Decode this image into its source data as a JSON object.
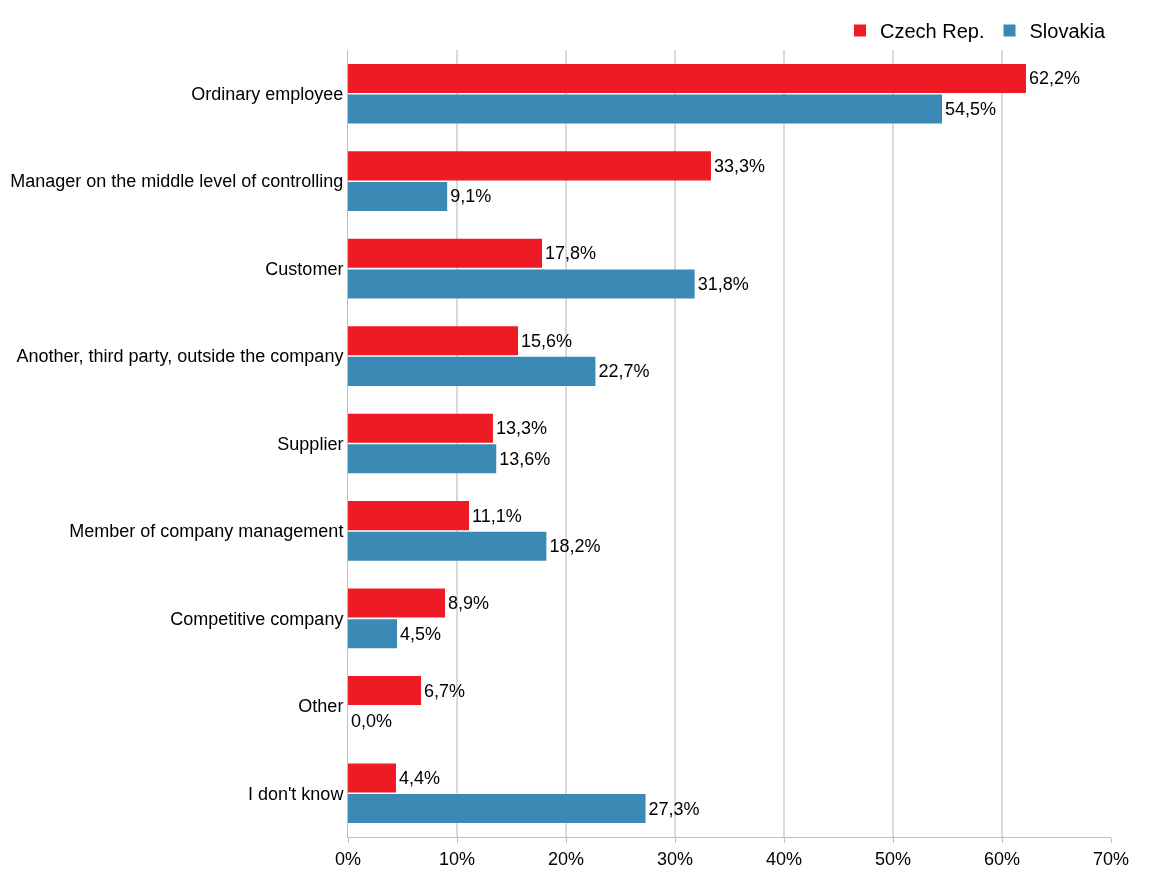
{
  "chart_data": {
    "type": "bar",
    "orientation": "horizontal",
    "categories": [
      "Ordinary employee",
      "Manager on the middle level of controlling",
      "Customer",
      "Another, third party, outside the company",
      "Supplier",
      "Member of company management",
      "Competitive company",
      "Other",
      "I don't know"
    ],
    "series": [
      {
        "name": "Czech Rep.",
        "color": "#ed1c24",
        "values": [
          62.2,
          33.3,
          17.8,
          15.6,
          13.3,
          11.1,
          8.9,
          6.7,
          4.4
        ],
        "value_labels": [
          "62,2%",
          "33,3%",
          "17,8%",
          "15,6%",
          "13,3%",
          "11,1%",
          "8,9%",
          "6,7%",
          "4,4%"
        ]
      },
      {
        "name": "Slovakia",
        "color": "#3a8ab5",
        "values": [
          54.5,
          9.1,
          31.8,
          22.7,
          13.6,
          18.2,
          4.5,
          0.0,
          27.3
        ],
        "value_labels": [
          "54,5%",
          "9,1%",
          "31,8%",
          "22,7%",
          "13,6%",
          "18,2%",
          "4,5%",
          "0,0%",
          "27,3%"
        ]
      }
    ],
    "xlim": [
      0,
      70
    ],
    "xticks": [
      {
        "value": 0,
        "label": "0%"
      },
      {
        "value": 10,
        "label": "10%"
      },
      {
        "value": 20,
        "label": "20%"
      },
      {
        "value": 30,
        "label": "30%"
      },
      {
        "value": 40,
        "label": "40%"
      },
      {
        "value": 50,
        "label": "50%"
      },
      {
        "value": 60,
        "label": "60%"
      },
      {
        "value": 70,
        "label": "70%"
      }
    ],
    "grid": "x",
    "legend": "top right"
  }
}
